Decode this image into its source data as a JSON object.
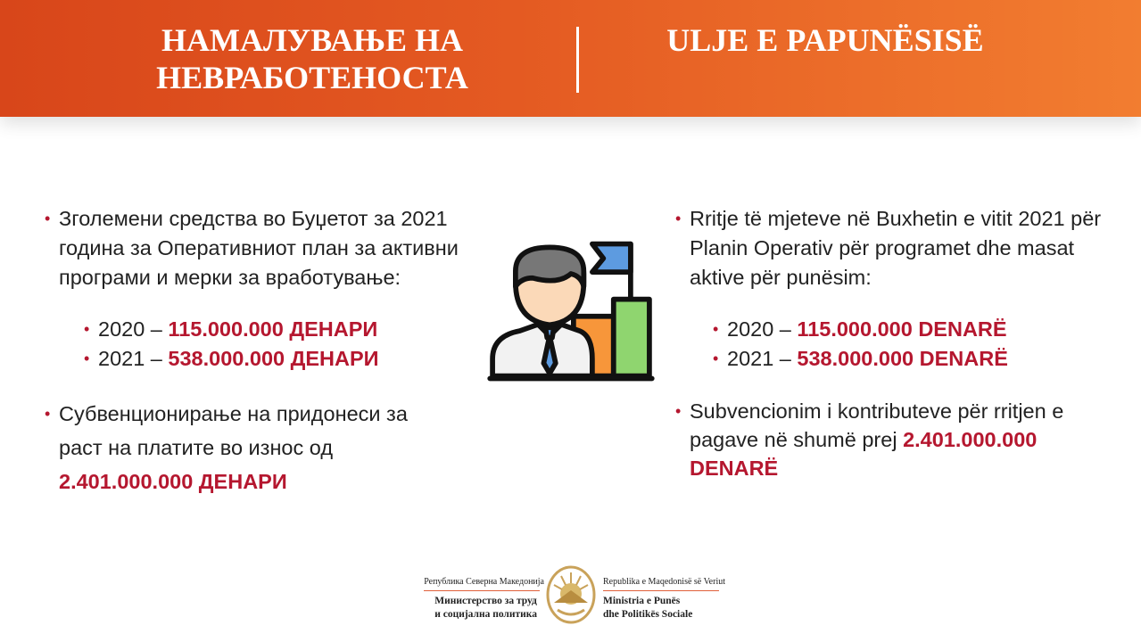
{
  "header": {
    "title_mk": "НАМАЛУВАЊЕ НА НЕВРАБОТЕНОСТА",
    "title_sq": "ULJE E PAPUNËSISË"
  },
  "left": {
    "bullet1": "Зголемени средства во Буџетот за 2021 година за Оперативниот план за активни програми и мерки за вработување:",
    "items": [
      {
        "year": "2020 –",
        "amount": "115.000.000 ДЕНАРИ"
      },
      {
        "year": "2021 –",
        "amount": "538.000.000 ДЕНАРИ"
      }
    ],
    "bullet2": "Субвенционирање на придонеси за раст на платите во износ од",
    "bullet2_amount": "2.401.000.000 ДЕНАРИ"
  },
  "right": {
    "bullet1": "Rritje të mjeteve në Buxhetin e vitit 2021 për Planin Operativ për programet dhe masat aktive për punësim:",
    "items": [
      {
        "year": "2020 –",
        "amount": "115.000.000 DENARË"
      },
      {
        "year": "2021 –",
        "amount": "538.000.000 DENARË"
      }
    ],
    "bullet2": "Subvencionim i kontributeve për rritjen e pagave në shumë prej",
    "bullet2_amount": "2.401.000.000 DENARË"
  },
  "footer": {
    "republic_mk": "Република Северна Македонија",
    "ministry_mk_1": "Министерство за труд",
    "ministry_mk_2": "и социјална политика",
    "republic_sq": "Republika e Maqedonisë së Veriut",
    "ministry_sq_1": "Ministria e Punës",
    "ministry_sq_2": "dhe Politikës Sociale"
  },
  "colors": {
    "accent": "#b5172f",
    "header_start": "#d8461a",
    "header_end": "#f27d30"
  },
  "icons": {
    "center": "businessman-growth-chart-icon",
    "emblem": "coat-of-arms-emblem"
  }
}
